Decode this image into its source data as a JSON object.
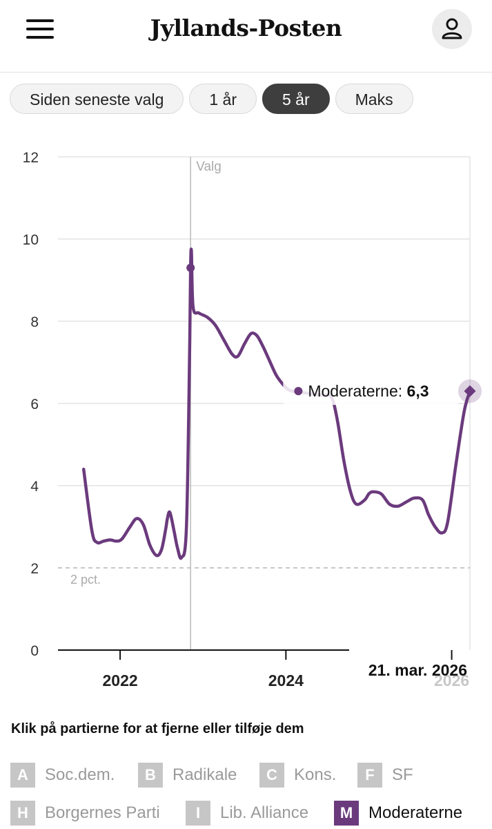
{
  "header": {
    "brand": "Jyllands-Posten",
    "menu_icon": "hamburger-menu-icon",
    "user_icon": "user-icon"
  },
  "filters": [
    {
      "label": "Siden seneste valg",
      "active": false
    },
    {
      "label": "1 år",
      "active": false
    },
    {
      "label": "5 år",
      "active": true
    },
    {
      "label": "Maks",
      "active": false
    }
  ],
  "legend": {
    "title": "Klik på partierne for at fjerne eller tilføje dem",
    "items": [
      {
        "key": "A",
        "label": "Soc.dem.",
        "active": false
      },
      {
        "key": "B",
        "label": "Radikale",
        "active": false
      },
      {
        "key": "C",
        "label": "Kons.",
        "active": false
      },
      {
        "key": "F",
        "label": "SF",
        "active": false
      },
      {
        "key": "H",
        "label": "Borgernes Parti",
        "active": false
      },
      {
        "key": "I",
        "label": "Lib. Alliance",
        "active": false
      },
      {
        "key": "M",
        "label": "Moderaterne",
        "active": true
      }
    ]
  },
  "colors": {
    "series": "#6b3a7d",
    "grid": "#e4e4e4",
    "axis": "#111111"
  },
  "chart_data": {
    "type": "line",
    "title": "",
    "xlabel": "",
    "ylabel": "",
    "ylim": [
      0,
      12
    ],
    "yticks": [
      0,
      2,
      4,
      6,
      8,
      10,
      12
    ],
    "xticks": [
      {
        "x": 2022,
        "label": "2022"
      },
      {
        "x": 2024,
        "label": "2024"
      },
      {
        "x": 2026,
        "label": "2026"
      }
    ],
    "xlim": [
      2021.25,
      2026.22
    ],
    "threshold": {
      "y": 2,
      "label": "2 pct."
    },
    "event": {
      "x": 2022.85,
      "label": "Valg"
    },
    "current_date_label": "21. mar. 2026",
    "series": [
      {
        "name": "Moderaterne",
        "x": [
          2021.56,
          2021.66,
          2021.72,
          2021.8,
          2021.88,
          2021.95,
          2022.02,
          2022.12,
          2022.2,
          2022.28,
          2022.36,
          2022.44,
          2022.5,
          2022.55,
          2022.57,
          2022.6,
          2022.65,
          2022.69,
          2022.74,
          2022.8,
          2022.84,
          2022.85,
          2022.86,
          2022.88,
          2022.95,
          2023.05,
          2023.15,
          2023.25,
          2023.35,
          2023.42,
          2023.5,
          2023.58,
          2023.65,
          2023.72,
          2023.8,
          2023.88,
          2023.95,
          2024.02,
          2024.07,
          2024.15,
          2024.25,
          2024.35,
          2024.45,
          2024.55,
          2024.62,
          2024.7,
          2024.78,
          2024.85,
          2024.95,
          2025.0,
          2025.05,
          2025.15,
          2025.25,
          2025.35,
          2025.45,
          2025.55,
          2025.65,
          2025.72,
          2025.8,
          2025.88,
          2025.95,
          2026.05,
          2026.15,
          2026.22
        ],
        "values": [
          4.4,
          2.9,
          2.62,
          2.65,
          2.68,
          2.65,
          2.7,
          3.0,
          3.2,
          3.05,
          2.55,
          2.3,
          2.45,
          2.95,
          3.2,
          3.35,
          2.9,
          2.5,
          2.25,
          3.0,
          7.5,
          9.3,
          9.7,
          8.35,
          8.2,
          8.1,
          7.9,
          7.55,
          7.2,
          7.15,
          7.45,
          7.7,
          7.65,
          7.4,
          7.05,
          6.7,
          6.5,
          6.35,
          6.3,
          6.28,
          6.25,
          6.22,
          6.2,
          6.15,
          5.6,
          4.6,
          3.85,
          3.55,
          3.65,
          3.8,
          3.85,
          3.8,
          3.55,
          3.5,
          3.6,
          3.7,
          3.65,
          3.3,
          3.0,
          2.85,
          3.1,
          4.5,
          5.8,
          6.3
        ]
      }
    ],
    "markers": [
      {
        "x": 2022.85,
        "value": 9.3
      },
      {
        "x": 2024.15,
        "value": 6.3
      }
    ],
    "tooltip": {
      "series": "Moderaterne",
      "value_label": "6,3"
    }
  }
}
